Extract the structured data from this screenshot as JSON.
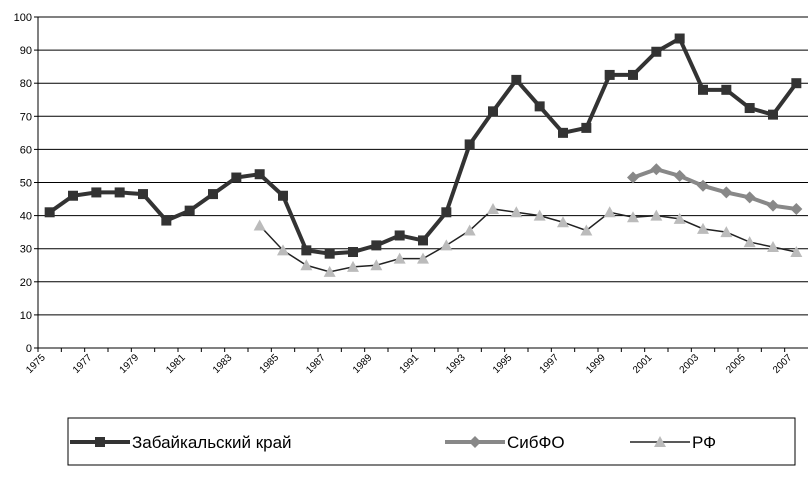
{
  "chart_data": {
    "type": "line",
    "categories": [
      "1975",
      null,
      "1977",
      null,
      "1979",
      null,
      "1981",
      null,
      "1983",
      null,
      "1985",
      null,
      "1987",
      null,
      "1989",
      null,
      "1991",
      null,
      "1993",
      null,
      "1995",
      null,
      "1997",
      null,
      "1999",
      null,
      "2001",
      null,
      "2003",
      null,
      "2005",
      null,
      "2007"
    ],
    "series": [
      {
        "name": "Забайкальский край",
        "color": "#333333",
        "marker": "square",
        "values": [
          41,
          46,
          47,
          47,
          46.5,
          38.5,
          41.5,
          46.5,
          51.5,
          52.5,
          46,
          29.5,
          28.5,
          29,
          31,
          34,
          32.5,
          41,
          61.5,
          71.5,
          81,
          73,
          65,
          66.5,
          82.5,
          82.5,
          89.5,
          93.5,
          78,
          78,
          72.5,
          70.5,
          80
        ]
      },
      {
        "name": "СибФО",
        "color": "#888888",
        "marker": "diamond",
        "values": [
          null,
          null,
          null,
          null,
          null,
          null,
          null,
          null,
          null,
          null,
          null,
          null,
          null,
          null,
          null,
          null,
          null,
          null,
          null,
          null,
          null,
          null,
          null,
          null,
          null,
          51.5,
          54,
          52,
          49,
          47,
          45.5,
          43,
          42
        ]
      },
      {
        "name": "РФ",
        "color": "#222222",
        "marker": "triangle",
        "marker_color": "#bbbbbb",
        "values": [
          null,
          null,
          null,
          null,
          null,
          null,
          null,
          null,
          null,
          37,
          29.5,
          25,
          23,
          24.5,
          25,
          27,
          27,
          31,
          35.5,
          42,
          41,
          40,
          38,
          35.5,
          41,
          39.5,
          40,
          39,
          36,
          35,
          32,
          30.5,
          29
        ]
      }
    ],
    "ylim": [
      0,
      100
    ],
    "yticks": [
      0,
      10,
      20,
      30,
      40,
      50,
      60,
      70,
      80,
      90,
      100
    ],
    "grid": true
  }
}
